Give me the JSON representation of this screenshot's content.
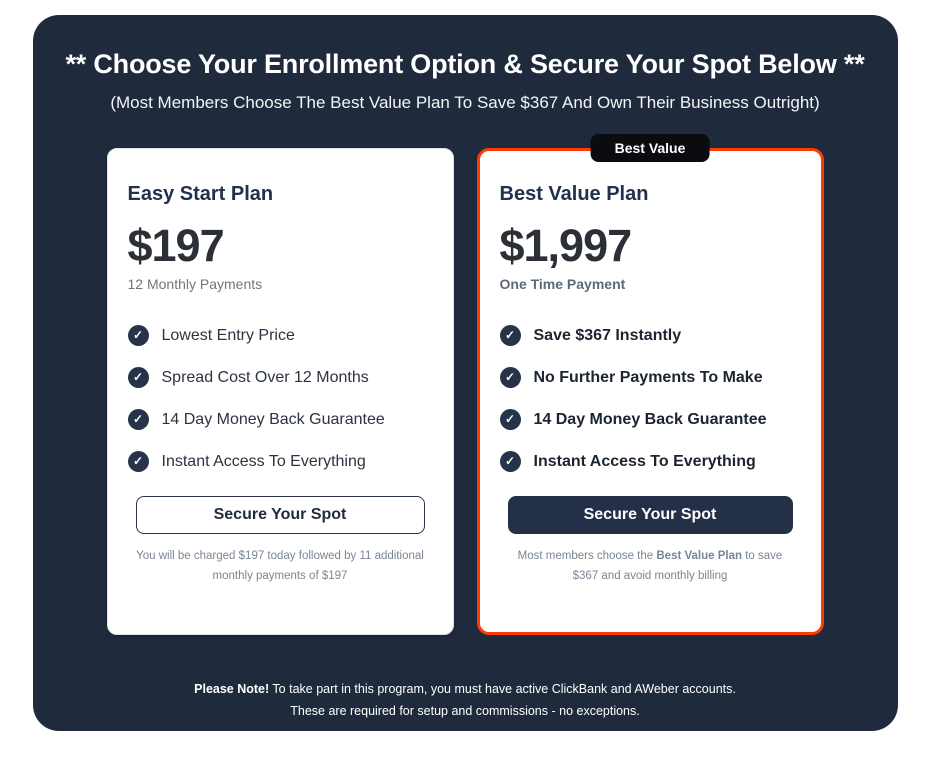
{
  "page": {
    "heading": "** Choose Your Enrollment Option & Secure Your Spot Below **",
    "subheading": "(Most Members Choose The Best Value Plan To Save $367 And Own Their Business Outright)",
    "note": {
      "bold": "Please Note!",
      "line1_rest": " To take part in this program, you must have active ClickBank and AWeber accounts.",
      "line2": "These are required for setup and commissions - no exceptions."
    }
  },
  "plans": {
    "easy": {
      "title": "Easy Start Plan",
      "price": "$197",
      "billing": "12 Monthly Payments",
      "features": [
        "Lowest Entry Price",
        "Spread Cost Over 12 Months",
        "14 Day Money Back Guarantee",
        "Instant Access To Everything"
      ],
      "cta": "Secure Your Spot",
      "fine_print": "You will be charged $197 today followed by 11 additional monthly payments of $197"
    },
    "best": {
      "badge": "Best Value",
      "title": "Best Value Plan",
      "price": "$1,997",
      "billing": "One Time Payment",
      "features": [
        "Save $367 Instantly",
        "No Further Payments To Make",
        "14 Day Money Back Guarantee",
        "Instant Access To Everything"
      ],
      "cta": "Secure Your Spot",
      "fine_print_pre": "Most members choose the ",
      "fine_print_bold": "Best Value Plan",
      "fine_print_post": " to save $367 and avoid monthly billing"
    }
  },
  "icons": {
    "check": "✓"
  },
  "colors": {
    "container_bg": "#1F2A3D",
    "accent_orange": "#FF3C00",
    "navy_title": "#22304E",
    "price_dark": "#2B2F36",
    "gray_text": "#6E7680",
    "check_circle": "#273349",
    "button_dark": "#243048",
    "badge_bg": "#0A0C10"
  }
}
